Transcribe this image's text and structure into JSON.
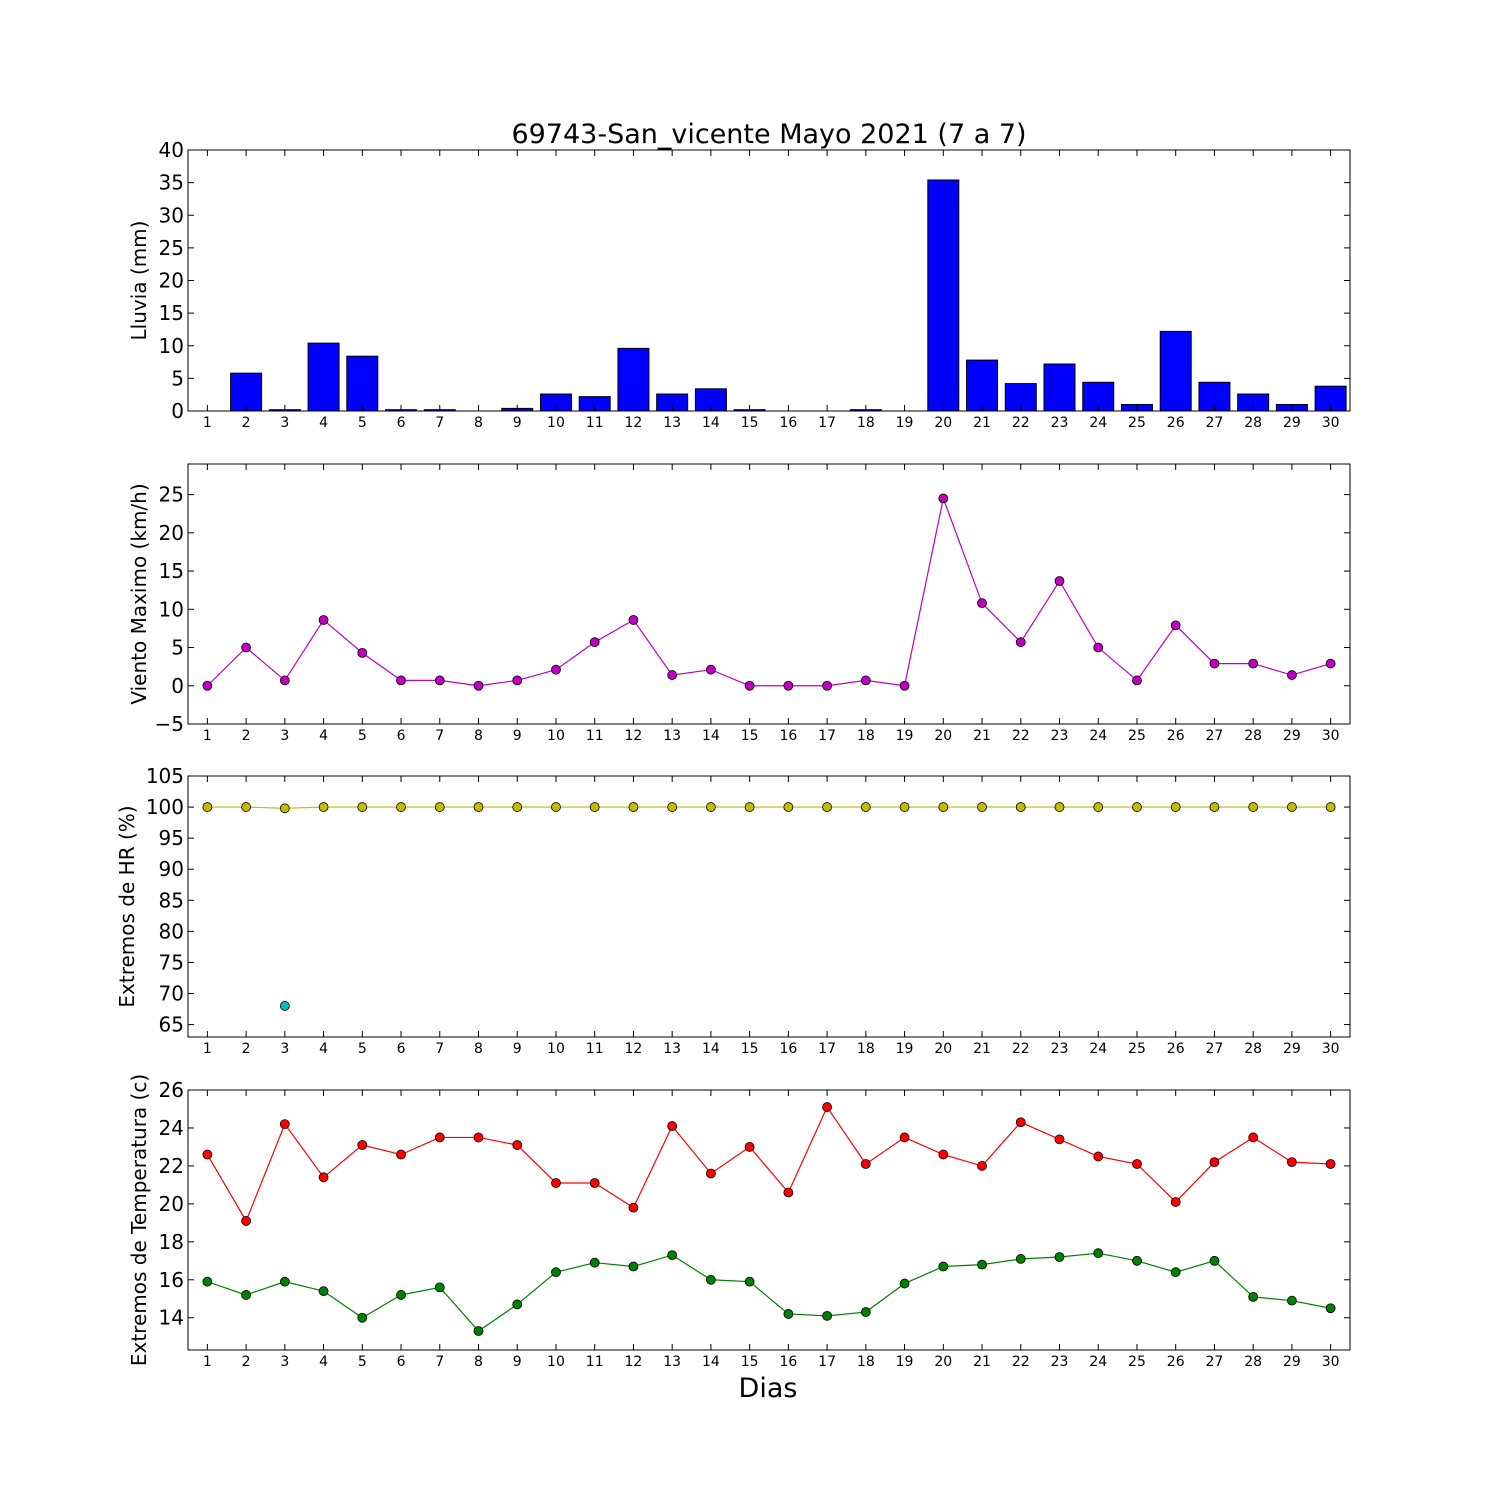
{
  "figure": {
    "title": "69743-San_vicente Mayo 2021  (7 a 7)",
    "xlabel": "Dias"
  },
  "chart_data": [
    {
      "type": "bar",
      "ylabel": "Lluvia (mm)",
      "ylim": [
        0,
        40
      ],
      "yticks": [
        0,
        5,
        10,
        15,
        20,
        25,
        30,
        35,
        40
      ],
      "categories": [
        1,
        2,
        3,
        4,
        5,
        6,
        7,
        8,
        9,
        10,
        11,
        12,
        13,
        14,
        15,
        16,
        17,
        18,
        19,
        20,
        21,
        22,
        23,
        24,
        25,
        26,
        27,
        28,
        29,
        30
      ],
      "series": [
        {
          "color": "#0000ff",
          "values": [
            0,
            5.8,
            0.2,
            10.4,
            8.4,
            0.2,
            0.2,
            0,
            0.4,
            2.6,
            2.2,
            9.6,
            2.6,
            3.4,
            0.2,
            0,
            0,
            0.2,
            0,
            35.4,
            7.8,
            4.2,
            7.2,
            4.4,
            1.0,
            12.2,
            4.4,
            2.6,
            1.0,
            3.8
          ]
        }
      ],
      "grid": false
    },
    {
      "type": "line",
      "ylabel": "Viento Maximo (km/h)",
      "ylim": [
        -5,
        29
      ],
      "yticks": [
        -5,
        0,
        5,
        10,
        15,
        20,
        25
      ],
      "x": [
        1,
        2,
        3,
        4,
        5,
        6,
        7,
        8,
        9,
        10,
        11,
        12,
        13,
        14,
        15,
        16,
        17,
        18,
        19,
        20,
        21,
        22,
        23,
        24,
        25,
        26,
        27,
        28,
        29,
        30
      ],
      "series": [
        {
          "color": "#bf00bf",
          "values": [
            0,
            5,
            0.7,
            8.6,
            4.3,
            0.7,
            0.7,
            0,
            0.7,
            2.1,
            5.7,
            8.6,
            1.4,
            2.1,
            0,
            0,
            0,
            0.7,
            0,
            24.5,
            10.8,
            5.7,
            13.7,
            5.0,
            0.7,
            7.9,
            2.9,
            2.9,
            1.4,
            2.9
          ]
        }
      ],
      "grid": false
    },
    {
      "type": "line",
      "ylabel": "Extremos de HR (%)",
      "ylim": [
        63,
        105
      ],
      "yticks": [
        65,
        70,
        75,
        80,
        85,
        90,
        95,
        100,
        105
      ],
      "x": [
        1,
        2,
        3,
        4,
        5,
        6,
        7,
        8,
        9,
        10,
        11,
        12,
        13,
        14,
        15,
        16,
        17,
        18,
        19,
        20,
        21,
        22,
        23,
        24,
        25,
        26,
        27,
        28,
        29,
        30
      ],
      "series": [
        {
          "color": "#bfbf00",
          "values": [
            100,
            100,
            99.8,
            100,
            100,
            100,
            100,
            100,
            100,
            100,
            100,
            100,
            100,
            100,
            100,
            100,
            100,
            100,
            100,
            100,
            100,
            100,
            100,
            100,
            100,
            100,
            100,
            100,
            100,
            100
          ]
        },
        {
          "color": "#00bfbf",
          "points": [
            [
              3,
              68
            ]
          ]
        }
      ],
      "grid": false
    },
    {
      "type": "line",
      "ylabel": "Extremos de Temperatura (c)",
      "ylim": [
        12.3,
        26
      ],
      "yticks": [
        14,
        16,
        18,
        20,
        22,
        24,
        26
      ],
      "x": [
        1,
        2,
        3,
        4,
        5,
        6,
        7,
        8,
        9,
        10,
        11,
        12,
        13,
        14,
        15,
        16,
        17,
        18,
        19,
        20,
        21,
        22,
        23,
        24,
        25,
        26,
        27,
        28,
        29,
        30
      ],
      "series": [
        {
          "color": "#ff0000",
          "values": [
            22.6,
            19.1,
            24.2,
            21.4,
            23.1,
            22.6,
            23.5,
            23.5,
            23.1,
            21.1,
            21.1,
            19.8,
            24.1,
            21.6,
            23.0,
            20.6,
            25.1,
            22.1,
            23.5,
            22.6,
            22.0,
            24.3,
            23.4,
            22.5,
            22.1,
            20.1,
            22.2,
            23.5,
            22.2,
            22.1
          ]
        },
        {
          "color": "#008000",
          "values": [
            15.9,
            15.2,
            15.9,
            15.4,
            14.0,
            15.2,
            15.6,
            13.3,
            14.7,
            16.4,
            16.9,
            16.7,
            17.3,
            16.0,
            15.9,
            14.2,
            14.1,
            14.3,
            15.8,
            16.7,
            16.8,
            17.1,
            17.2,
            17.4,
            17.0,
            16.4,
            17.0,
            15.1,
            14.9,
            14.5
          ]
        }
      ],
      "grid": false
    }
  ]
}
